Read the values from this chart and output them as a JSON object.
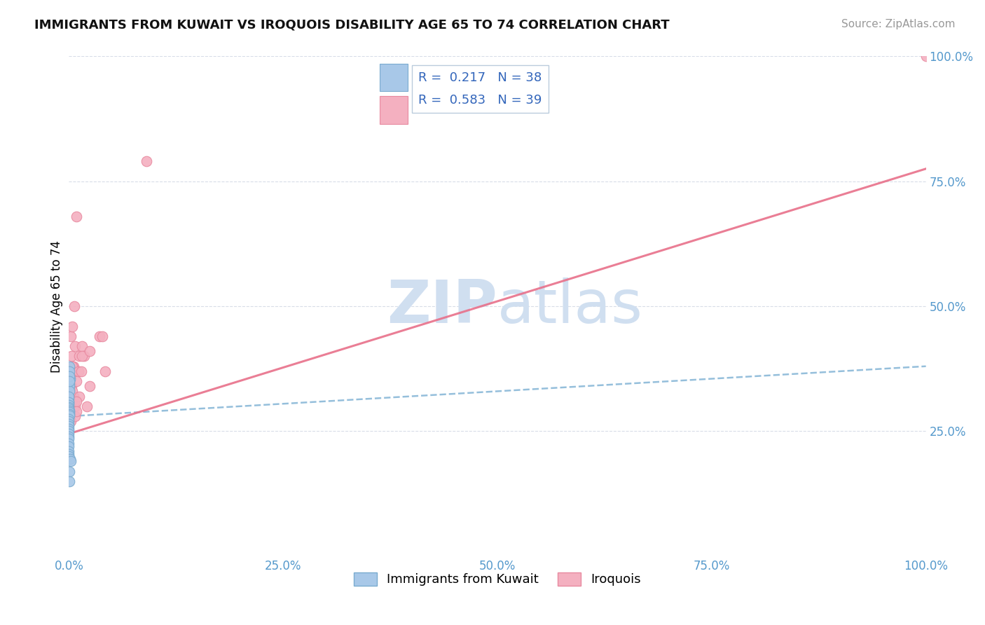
{
  "title": "IMMIGRANTS FROM KUWAIT VS IROQUOIS DISABILITY AGE 65 TO 74 CORRELATION CHART",
  "source": "Source: ZipAtlas.com",
  "ylabel": "Disability Age 65 to 74",
  "xlim": [
    0,
    1.0
  ],
  "ylim": [
    0,
    1.0
  ],
  "xticks": [
    0.0,
    0.25,
    0.5,
    0.75,
    1.0
  ],
  "xticklabels": [
    "0.0%",
    "25.0%",
    "50.0%",
    "75.0%",
    "100.0%"
  ],
  "ytick_positions": [
    0.25,
    0.5,
    0.75,
    1.0
  ],
  "yticklabels_right": [
    "25.0%",
    "50.0%",
    "75.0%",
    "100.0%"
  ],
  "blue_R": 0.217,
  "blue_N": 38,
  "pink_R": 0.583,
  "pink_N": 39,
  "blue_color": "#a8c8e8",
  "pink_color": "#f4b0c0",
  "blue_edge_color": "#7aabcf",
  "pink_edge_color": "#e88aa0",
  "blue_line_color": "#8ab8d8",
  "pink_line_color": "#e8708a",
  "watermark_color": "#d0dff0",
  "grid_color": "#d8dde8",
  "blue_scatter_x": [
    0.0008,
    0.0005,
    0.0012,
    0.0006,
    0.0003,
    0.0004,
    0.0002,
    0.0001,
    0.0,
    0.0,
    0.0,
    0.0,
    0.0,
    0.0,
    0.0,
    0.0,
    0.0001,
    0.0002,
    0.0003,
    0.0001,
    0.0,
    0.0,
    0.0,
    0.0,
    0.0,
    0.0,
    0.0,
    0.0,
    0.0,
    0.0,
    0.0,
    0.0,
    0.0,
    0.0,
    0.0015,
    0.002,
    0.0008,
    0.0004
  ],
  "blue_scatter_y": [
    0.345,
    0.34,
    0.355,
    0.33,
    0.38,
    0.37,
    0.36,
    0.35,
    0.305,
    0.31,
    0.315,
    0.32,
    0.308,
    0.302,
    0.298,
    0.295,
    0.292,
    0.288,
    0.285,
    0.282,
    0.275,
    0.27,
    0.265,
    0.26,
    0.255,
    0.25,
    0.245,
    0.24,
    0.235,
    0.225,
    0.22,
    0.21,
    0.205,
    0.2,
    0.195,
    0.19,
    0.17,
    0.15
  ],
  "pink_scatter_x": [
    0.002,
    0.004,
    0.006,
    0.005,
    0.003,
    0.009,
    0.007,
    0.005,
    0.004,
    0.003,
    0.002,
    0.003,
    0.004,
    0.005,
    0.007,
    0.012,
    0.015,
    0.011,
    0.009,
    0.006,
    0.005,
    0.004,
    0.003,
    0.002,
    0.014,
    0.018,
    0.012,
    0.009,
    0.007,
    0.009,
    0.015,
    0.024,
    0.021,
    0.024,
    0.036,
    0.039,
    0.042,
    0.09,
    1.0
  ],
  "pink_scatter_y": [
    0.44,
    0.46,
    0.5,
    0.38,
    0.4,
    0.68,
    0.42,
    0.37,
    0.38,
    0.34,
    0.36,
    0.37,
    0.38,
    0.32,
    0.3,
    0.4,
    0.42,
    0.37,
    0.35,
    0.31,
    0.32,
    0.33,
    0.31,
    0.27,
    0.37,
    0.4,
    0.32,
    0.31,
    0.28,
    0.29,
    0.4,
    0.41,
    0.3,
    0.34,
    0.44,
    0.44,
    0.37,
    0.79,
    1.0
  ],
  "blue_trend_x": [
    0.0,
    1.0
  ],
  "blue_trend_y": [
    0.28,
    0.38
  ],
  "pink_trend_x": [
    0.0,
    1.0
  ],
  "pink_trend_y": [
    0.245,
    0.775
  ]
}
